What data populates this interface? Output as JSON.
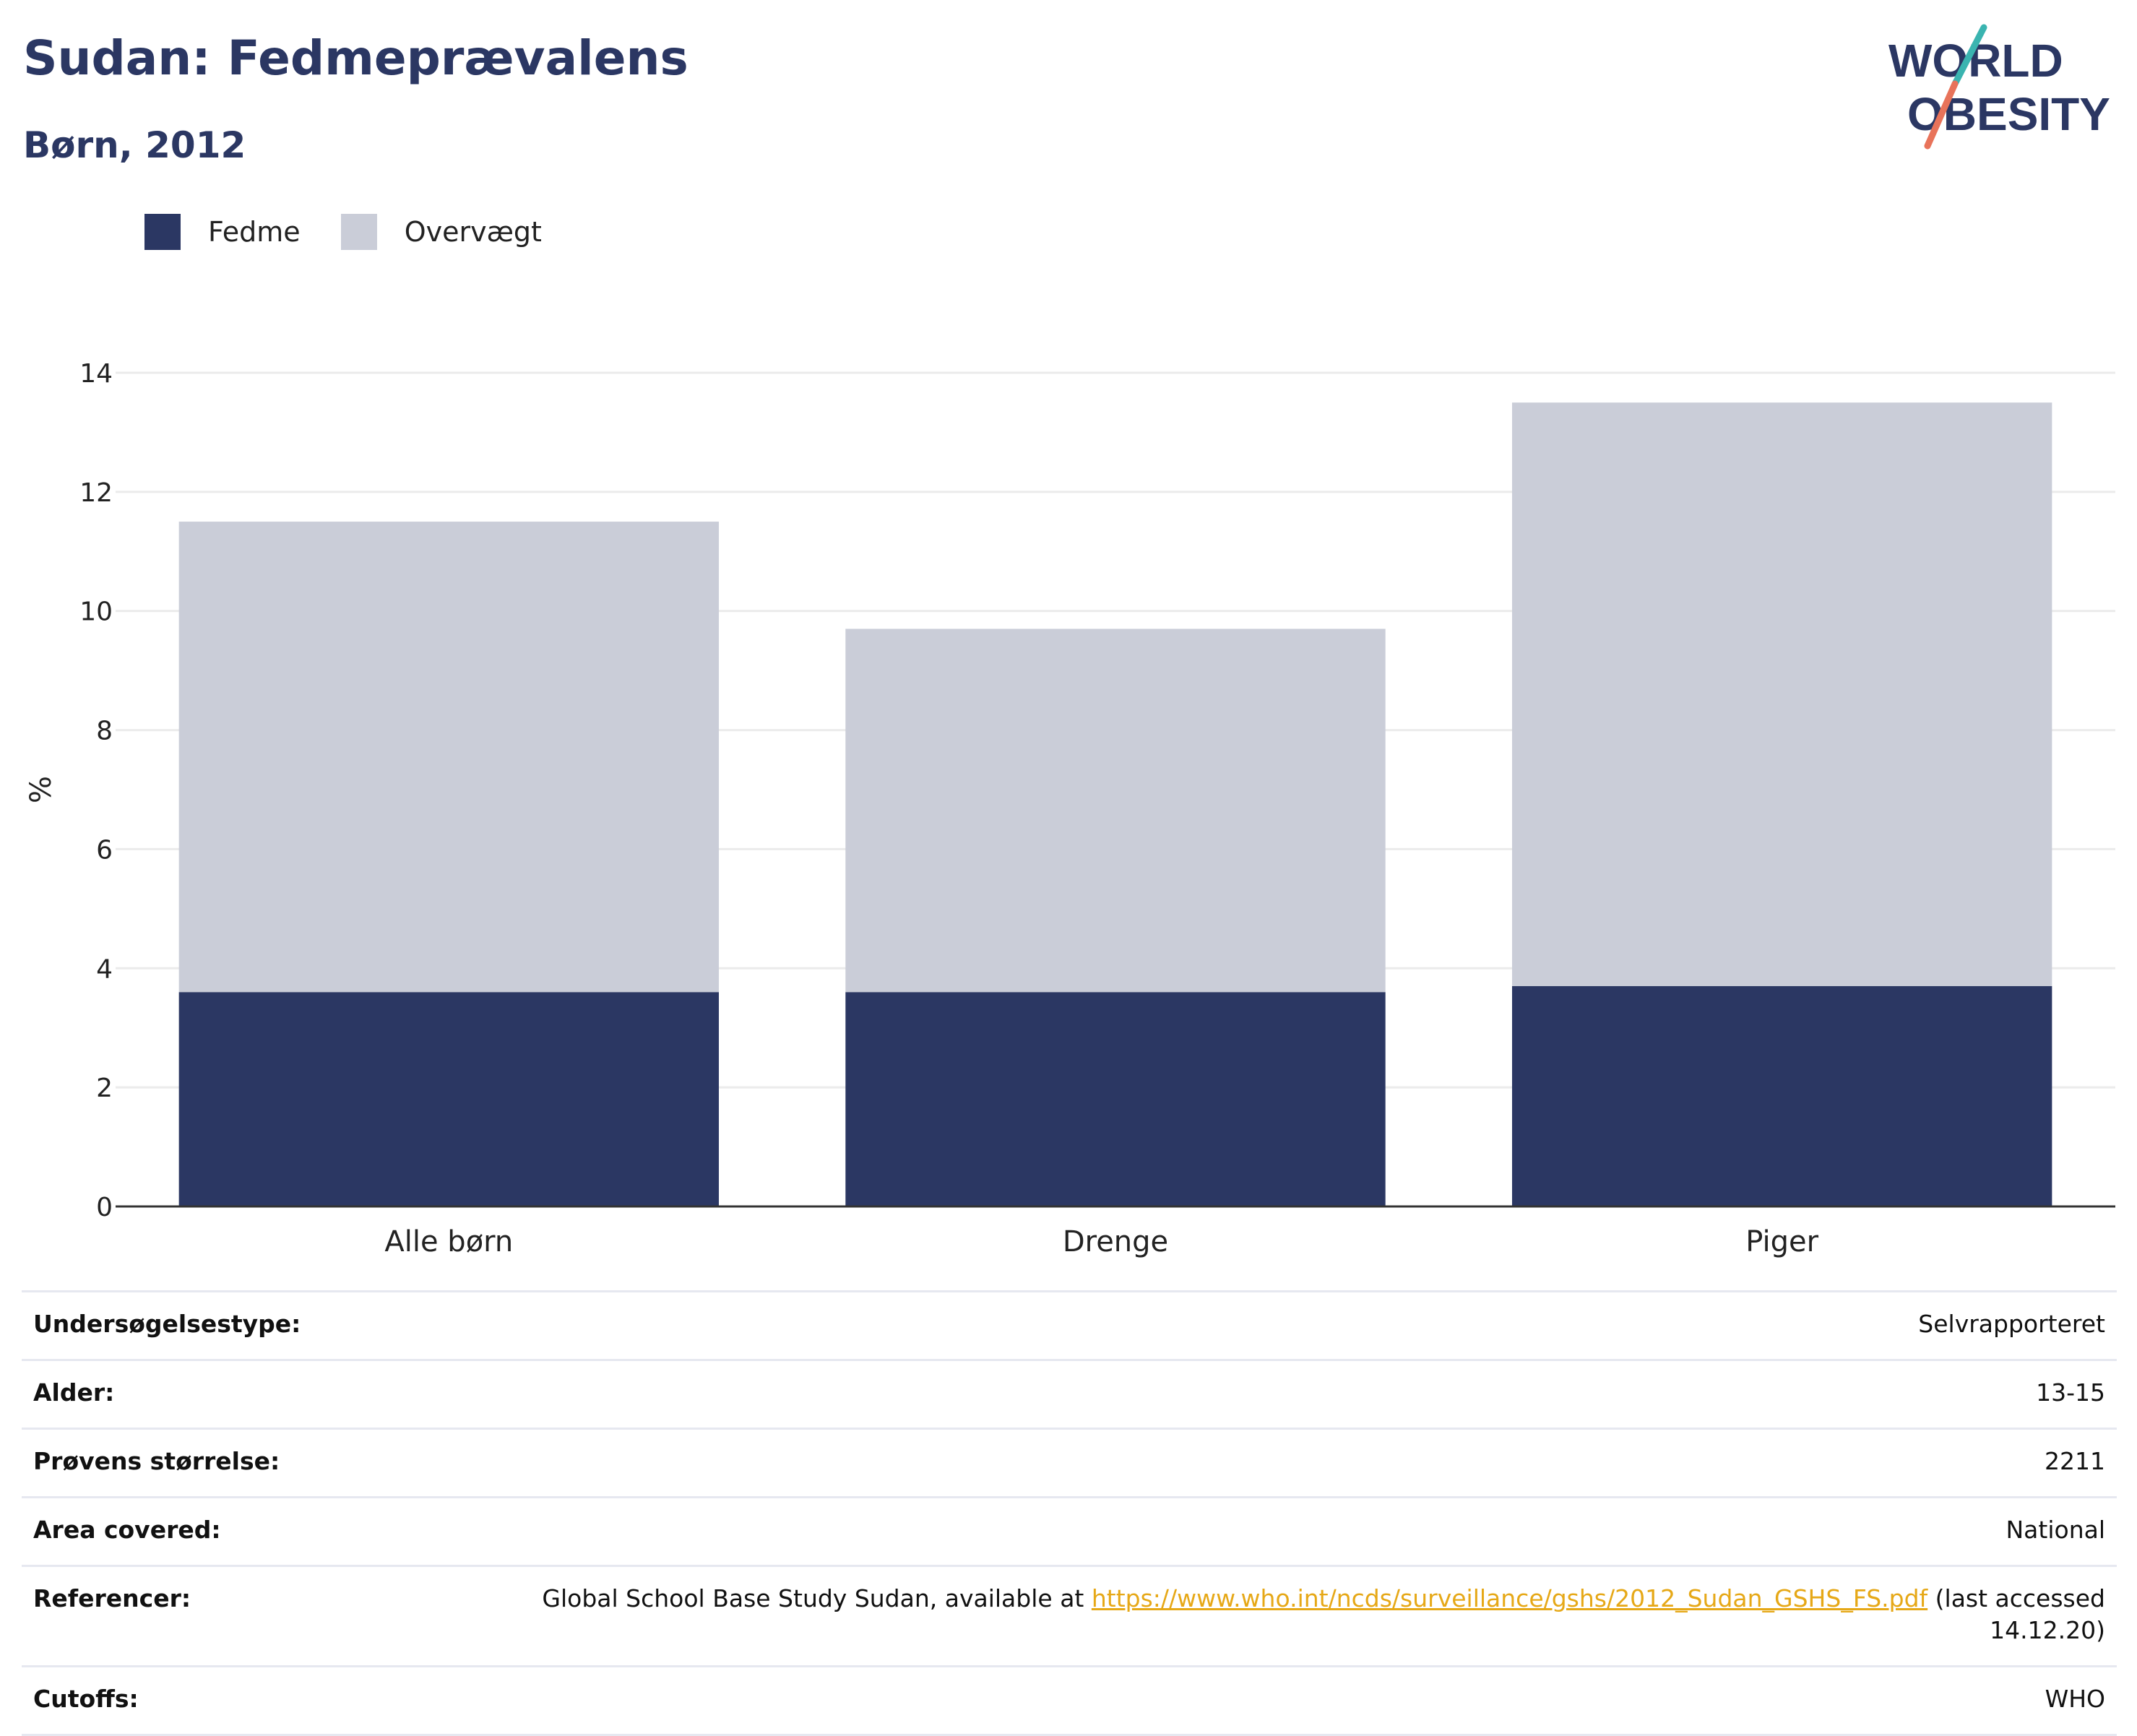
{
  "header": {
    "title": "Sudan: Fedmeprævalens",
    "subtitle": "Børn, 2012"
  },
  "logo": {
    "line1": "WORLD",
    "line2": "OBESITY",
    "colors": {
      "text": "#2b3763",
      "slash_top": "#3ab4b0",
      "slash_bottom": "#e8735a"
    }
  },
  "chart_data": {
    "type": "bar",
    "stacked": true,
    "categories": [
      "Alle børn",
      "Drenge",
      "Piger"
    ],
    "series": [
      {
        "name": "Fedme",
        "values": [
          3.6,
          3.6,
          3.7
        ],
        "color": "#2b3763"
      },
      {
        "name": "Overvægt",
        "values": [
          7.9,
          6.1,
          9.8
        ],
        "color": "#cacdd8"
      }
    ],
    "ylabel": "%",
    "ylim": [
      0,
      14
    ],
    "yticks": [
      0,
      2,
      4,
      6,
      8,
      10,
      12,
      14
    ],
    "grid": true,
    "legend_position": "top-left"
  },
  "info": {
    "rows": [
      {
        "label": "Undersøgelsestype:",
        "value": "Selvrapporteret"
      },
      {
        "label": "Alder:",
        "value": "13-15"
      },
      {
        "label": "Prøvens størrelse:",
        "value": "2211"
      },
      {
        "label": "Area covered:",
        "value": "National"
      },
      {
        "label": "Cutoffs:",
        "value": "WHO"
      }
    ],
    "reference": {
      "label": "Referencer:",
      "prefix": "Global School Base Study Sudan, available at ",
      "link": "https://www.who.int/ncds/surveillance/gshs/2012_Sudan_GSHS_FS.pdf",
      "suffix": " (last accessed 14.12.20)"
    }
  }
}
